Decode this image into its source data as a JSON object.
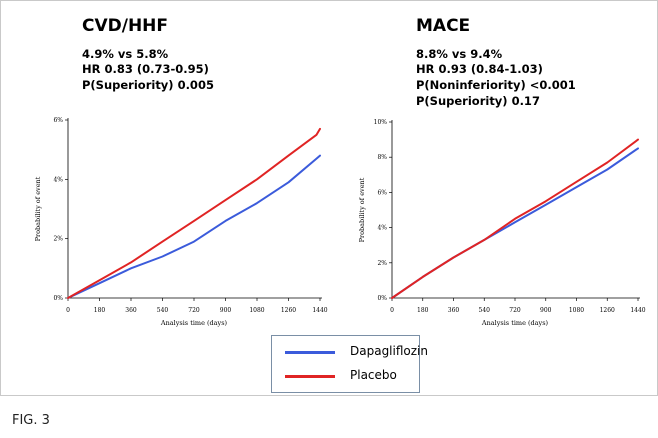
{
  "caption": "FIG. 3",
  "legend": {
    "items": [
      {
        "label": "Dapagliflozin",
        "color": "#3b5bdb"
      },
      {
        "label": "Placebo",
        "color": "#e02424"
      }
    ]
  },
  "panels": [
    {
      "title": "CVD/HHF",
      "stats": [
        "4.9% vs 5.8%",
        "HR 0.83 (0.73-0.95)",
        "P(Superiority) 0.005"
      ]
    },
    {
      "title": "MACE",
      "stats": [
        "8.8% vs 9.4%",
        "HR 0.93 (0.84-1.03)",
        "P(Noninferiority) <0.001",
        "P(Superiority) 0.17"
      ]
    }
  ],
  "chart_data": [
    {
      "type": "line",
      "title": "CVD/HHF",
      "xlabel": "Analysis time (days)",
      "ylabel": "Probability of event",
      "xlim": [
        0,
        1440
      ],
      "ylim": [
        0,
        6
      ],
      "x_ticks": [
        "0",
        "180",
        "360",
        "540",
        "720",
        "900",
        "1080",
        "1260",
        "1440"
      ],
      "y_ticks": [
        "0%",
        "2%",
        "4%",
        "6%"
      ],
      "x": [
        0,
        180,
        360,
        540,
        720,
        900,
        1080,
        1260,
        1420,
        1440
      ],
      "series": [
        {
          "name": "Dapagliflozin",
          "color": "#3b5bdb",
          "values": [
            0,
            0.5,
            1.0,
            1.4,
            1.9,
            2.6,
            3.2,
            3.9,
            4.7,
            4.8
          ]
        },
        {
          "name": "Placebo",
          "color": "#e02424",
          "values": [
            0,
            0.6,
            1.2,
            1.9,
            2.6,
            3.3,
            4.0,
            4.8,
            5.5,
            5.7
          ]
        }
      ]
    },
    {
      "type": "line",
      "title": "MACE",
      "xlabel": "Analysis time (days)",
      "ylabel": "Probability of event",
      "xlim": [
        0,
        1440
      ],
      "ylim": [
        0,
        10
      ],
      "x_ticks": [
        "0",
        "180",
        "360",
        "540",
        "720",
        "900",
        "1080",
        "1260",
        "1440"
      ],
      "y_ticks": [
        "0%",
        "2%",
        "4%",
        "6%",
        "8%",
        "10%"
      ],
      "x": [
        0,
        180,
        360,
        540,
        720,
        900,
        1080,
        1260,
        1440
      ],
      "series": [
        {
          "name": "Dapagliflozin",
          "color": "#3b5bdb",
          "values": [
            0,
            1.2,
            2.3,
            3.3,
            4.3,
            5.3,
            6.3,
            7.3,
            8.5
          ]
        },
        {
          "name": "Placebo",
          "color": "#e02424",
          "values": [
            0,
            1.2,
            2.3,
            3.3,
            4.5,
            5.5,
            6.6,
            7.7,
            9.0
          ]
        }
      ]
    }
  ]
}
